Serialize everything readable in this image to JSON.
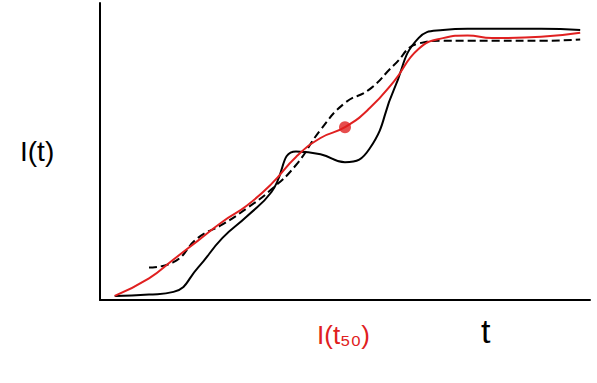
{
  "chart_data": {
    "type": "line",
    "x_label": "t",
    "y_label": "I(t)",
    "x": [
      0.3,
      1,
      1.5,
      2,
      2.5,
      3,
      3.5,
      4,
      4.5,
      5,
      5.5,
      6,
      6.5,
      7,
      7.5,
      8,
      9,
      9.8
    ],
    "xlim": [
      0,
      10
    ],
    "ylim": [
      0,
      11
    ],
    "tick_labels": false,
    "grid": false,
    "series": [
      {
        "color": "#000000",
        "line_style": "solid",
        "values": [
          0.15,
          0.2,
          0.3,
          1.2,
          2.3,
          3.1,
          4.0,
          5.5,
          5.4,
          5.1,
          5.6,
          7.8,
          9.7,
          10.0,
          10.05,
          10.05,
          10.05,
          10.0
        ]
      },
      {
        "color": "#000000",
        "line_style": "dashed",
        "values": [
          null,
          1.2,
          1.4,
          2.3,
          2.8,
          3.4,
          4.1,
          5.0,
          6.3,
          7.3,
          7.8,
          8.7,
          9.5,
          9.6,
          9.6,
          9.6,
          9.6,
          9.65
        ]
      },
      {
        "color": "#e02020",
        "line_style": "solid",
        "values": [
          0.15,
          0.8,
          1.5,
          2.2,
          2.9,
          3.5,
          4.3,
          5.3,
          6.0,
          6.4,
          7.1,
          8.1,
          9.3,
          9.7,
          9.8,
          9.7,
          9.75,
          9.9
        ]
      },
      {
        "type": "scatter",
        "color": "#e02020",
        "marker": "circle",
        "values": [
          null,
          null,
          null,
          null,
          null,
          null,
          null,
          null,
          null,
          6.4,
          null,
          null,
          null,
          null,
          null,
          null,
          null,
          null
        ]
      }
    ],
    "annotations": [
      {
        "text": "I(t₅₀)",
        "x": 5,
        "color": "#e02020"
      }
    ]
  }
}
